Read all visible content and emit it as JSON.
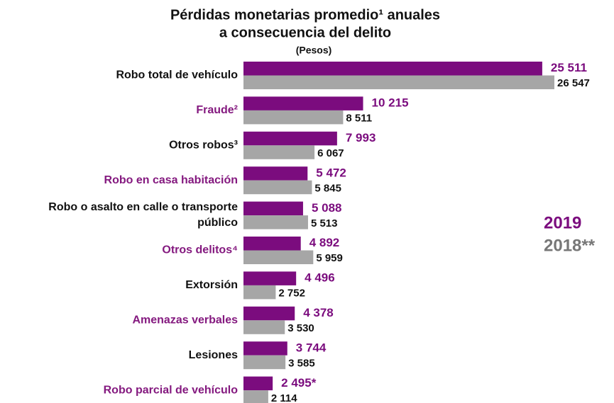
{
  "chart_data": {
    "type": "bar",
    "orientation": "horizontal",
    "title": [
      "Pérdidas monetarias promedio¹ anuales",
      "a consecuencia del delito"
    ],
    "subtitle": "(Pesos)",
    "categories": [
      "Robo total de vehículo",
      "Fraude²",
      "Otros robos³",
      "Robo en casa habitación",
      "Robo o asalto en calle o transporte público",
      "Otros delitos⁴",
      "Extorsión",
      "Amenazas verbales",
      "Lesiones",
      "Robo parcial de vehículo"
    ],
    "series": [
      {
        "name": "2019",
        "color": "#7b0c7e",
        "values": [
          25511,
          10215,
          7993,
          5472,
          5088,
          4892,
          4496,
          4378,
          3744,
          2495
        ],
        "value_labels": [
          "25 511",
          "10 215",
          "7 993",
          "5 472",
          "5 088",
          "4 892",
          "4 496",
          "4 378",
          "3 744",
          "2 495*"
        ]
      },
      {
        "name": "2018**",
        "color": "#a6a6a6",
        "values": [
          26547,
          8511,
          6067,
          5845,
          5513,
          5959,
          2752,
          3530,
          3585,
          2114
        ],
        "value_labels": [
          "26 547",
          "8 511",
          "6 067",
          "5 845",
          "5 513",
          "5 959",
          "2 752",
          "3 530",
          "3 585",
          "2 114"
        ]
      }
    ],
    "legend": "right"
  }
}
